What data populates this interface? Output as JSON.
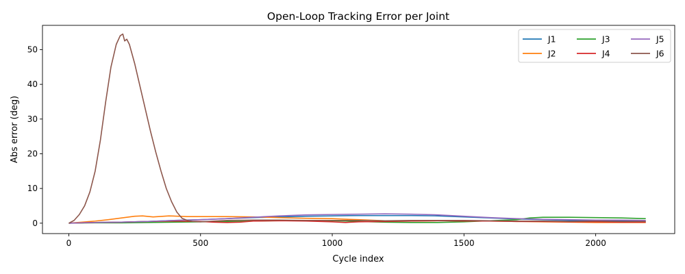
{
  "chart_data": {
    "type": "line",
    "title": "Open-Loop Tracking Error per Joint",
    "xlabel": "Cycle index",
    "ylabel": "Abs error (deg)",
    "xlim": [
      -100,
      2300
    ],
    "ylim": [
      -3,
      57
    ],
    "xticks": [
      0,
      500,
      1000,
      1500,
      2000
    ],
    "yticks": [
      0,
      10,
      20,
      30,
      40,
      50
    ],
    "grid": false,
    "legend_position": "top-right",
    "legend_columns": 3,
    "series": [
      {
        "name": "J1",
        "color": "#1f77b4",
        "x": [
          0,
          100,
          200,
          300,
          400,
          500,
          600,
          700,
          800,
          900,
          1000,
          1100,
          1200,
          1300,
          1400,
          1500,
          1600,
          1700,
          1800,
          1900,
          2000,
          2100,
          2190
        ],
        "y": [
          0,
          0.2,
          0.3,
          0.5,
          0.8,
          1.0,
          1.3,
          1.6,
          1.8,
          2.0,
          2.1,
          2.2,
          2.2,
          2.2,
          2.1,
          1.8,
          1.5,
          1.2,
          1.0,
          0.8,
          0.7,
          0.6,
          0.6
        ]
      },
      {
        "name": "J2",
        "color": "#ff7f0e",
        "x": [
          0,
          50,
          100,
          150,
          200,
          250,
          280,
          320,
          380,
          450,
          500,
          600,
          700,
          800,
          900,
          1000,
          1100,
          1200,
          1300,
          1400,
          1500,
          1600,
          1700,
          1800,
          1900,
          2000,
          2100,
          2190
        ],
        "y": [
          0,
          0.3,
          0.6,
          1.0,
          1.5,
          2.0,
          2.1,
          1.8,
          2.1,
          1.9,
          1.9,
          1.9,
          1.8,
          1.6,
          1.4,
          1.3,
          1.0,
          0.7,
          0.6,
          0.7,
          0.7,
          0.6,
          0.5,
          0.4,
          0.3,
          0.2,
          0.2,
          0.2
        ]
      },
      {
        "name": "J3",
        "color": "#2ca02c",
        "x": [
          0,
          100,
          200,
          300,
          400,
          500,
          600,
          700,
          800,
          900,
          1000,
          1100,
          1200,
          1300,
          1400,
          1500,
          1600,
          1700,
          1750,
          1800,
          1900,
          2000,
          2100,
          2190
        ],
        "y": [
          0,
          0.1,
          0.1,
          0.2,
          0.3,
          0.4,
          0.5,
          0.6,
          0.7,
          0.8,
          0.7,
          0.5,
          0.3,
          0.2,
          0.2,
          0.4,
          0.7,
          1.0,
          1.5,
          1.7,
          1.7,
          1.6,
          1.5,
          1.3
        ]
      },
      {
        "name": "J4",
        "color": "#d62728",
        "x": [
          0,
          100,
          200,
          300,
          400,
          500,
          550,
          600,
          650,
          700,
          800,
          900,
          1000,
          1050,
          1100,
          1200,
          1300,
          1400,
          1500,
          1600,
          1700,
          1800,
          1900,
          2000,
          2100,
          2190
        ],
        "y": [
          0,
          0.2,
          0.3,
          0.5,
          0.6,
          0.5,
          0.3,
          0.2,
          0.3,
          0.6,
          0.7,
          0.6,
          0.4,
          0.2,
          0.4,
          0.5,
          0.6,
          0.7,
          0.6,
          0.6,
          0.5,
          0.5,
          0.4,
          0.4,
          0.3,
          0.3
        ]
      },
      {
        "name": "J5",
        "color": "#9467bd",
        "x": [
          0,
          100,
          200,
          300,
          400,
          500,
          600,
          700,
          800,
          900,
          1000,
          1100,
          1200,
          1300,
          1400,
          1500,
          1600,
          1700,
          1800,
          1900,
          2000,
          2100,
          2190
        ],
        "y": [
          0,
          0.2,
          0.3,
          0.5,
          0.8,
          1.0,
          1.3,
          1.7,
          2.1,
          2.4,
          2.5,
          2.6,
          2.7,
          2.6,
          2.4,
          2.0,
          1.6,
          1.3,
          1.1,
          1.0,
          0.9,
          0.9,
          0.8
        ]
      },
      {
        "name": "J6",
        "color": "#8c564b",
        "x": [
          0,
          20,
          40,
          60,
          80,
          100,
          120,
          140,
          160,
          180,
          195,
          205,
          212,
          220,
          230,
          250,
          270,
          290,
          310,
          330,
          350,
          370,
          390,
          410,
          430,
          450,
          470,
          500,
          550,
          600,
          700,
          800,
          900,
          1000,
          1100,
          1200,
          1300,
          1400,
          1500,
          1600,
          1700,
          1800,
          1900,
          2000,
          2100,
          2190
        ],
        "y": [
          0,
          0.8,
          2.5,
          5,
          9,
          15,
          24,
          35,
          45,
          51.5,
          54,
          54.5,
          52.5,
          53,
          51.5,
          46,
          39.5,
          33,
          26.5,
          20.5,
          15,
          10,
          6.2,
          3.2,
          1.4,
          0.8,
          0.5,
          0.4,
          0.6,
          0.8,
          0.9,
          0.9,
          0.8,
          0.8,
          0.8,
          0.7,
          0.8,
          0.8,
          0.8,
          0.7,
          0.6,
          0.6,
          0.5,
          0.6,
          0.5,
          0.5
        ]
      }
    ]
  }
}
